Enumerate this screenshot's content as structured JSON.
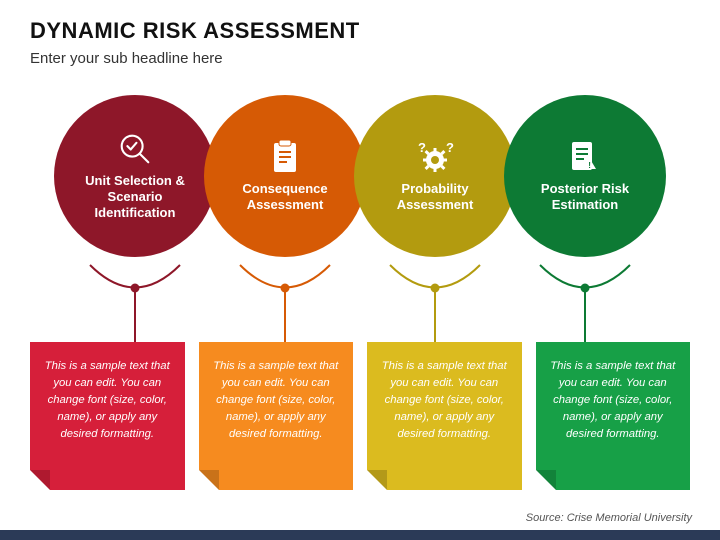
{
  "title": "DYNAMIC RISK ASSESSMENT",
  "subtitle": "Enter your sub headline here",
  "source": "Source: Crise Memorial University",
  "bar_color": "#2b3a57",
  "background": "#ffffff",
  "circle_diameter": 162,
  "circle_overlap": 12,
  "steps": [
    {
      "label": "Unit Selection & Scenario Identification",
      "circle_color": "#8e1729",
      "card_color": "#d61f3a",
      "connector_color": "#8e1729",
      "icon": "magnifier-check",
      "text": "This is a sample text that you can edit. You can change font (size, color, name), or apply any desired formatting."
    },
    {
      "label": "Consequence Assessment",
      "circle_color": "#d65a05",
      "card_color": "#f68b1f",
      "connector_color": "#d65a05",
      "icon": "clipboard",
      "text": "This is a sample text that you can edit. You can change font (size, color, name), or apply any desired formatting."
    },
    {
      "label": "Probability Assessment",
      "circle_color": "#b39b0f",
      "card_color": "#dbbb1f",
      "connector_color": "#b39b0f",
      "icon": "gear-question",
      "text": "This is a sample text that you can edit. You can change font (size, color, name), or apply any desired formatting."
    },
    {
      "label": "Posterior Risk Estimation",
      "circle_color": "#0d7a34",
      "card_color": "#17a047",
      "connector_color": "#0d7a34",
      "icon": "report-alert",
      "text": "This is a sample text that you can edit. You can change font (size, color, name), or apply any desired formatting."
    }
  ]
}
